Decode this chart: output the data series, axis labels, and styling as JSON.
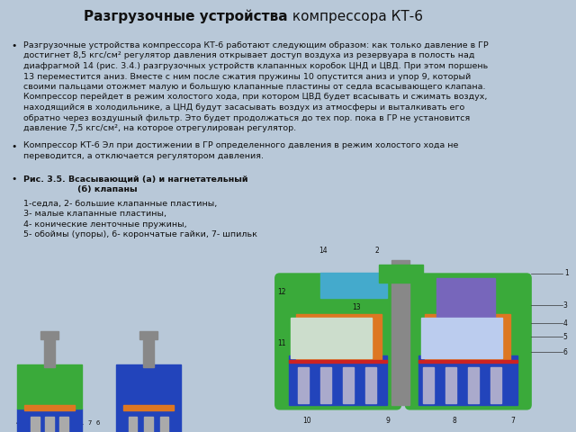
{
  "title_bold": "Разгрузочные устройства",
  "title_normal": " компрессора КТ-6",
  "title_bg": "#E8A8A0",
  "content_bg": "#B8C8D8",
  "fig_bg": "#B8C8D8",
  "text_color": "#111111",
  "fontsize_title": 11,
  "fontsize_main": 6.8,
  "bullet1_lines": [
    "Разгрузочные устройства компрессора КТ-6 работают следующим образом: как только давление в ГР",
    "достигнет 8,5 кгс/см² регулятор давления открывает доступ воздуха из резервуара в полость над",
    "диафрагмой 14 (рис. 3.4.) разгрузочных устройств клапанных коробок ЦНД и ЦВД. При этом поршень",
    "13 переместится аниз. Вместе с ним после сжатия пружины 10 опустится аниз и упор 9, который",
    "своими пальцами отожмет малую и большую клапанные пластины от седла всасывающего клапана.",
    "Компрессор перейдет в режим холостого хода, при котором ЦВД будет всасывать и сжимать воздух,",
    "находящийся в холодильнике, а ЦНД будут засасывать воздух из атмосферы и выталкивать его",
    "обратно через воздушный фильтр. Это будет продолжаться до тех пор. пока в ГР не установится",
    "давление 7,5 кгс/см², на которое отрегулирован регулятор."
  ],
  "bullet1_bold_words": [
    "КТ-6",
    "ГР",
    "8,5",
    "кгс/см²",
    "ЦНД",
    "ЦВД",
    "13",
    "10",
    "9",
    "ЦВД",
    "ЦНД",
    "ГР",
    "7,5",
    "кгс/см²"
  ],
  "bullet2_lines": [
    "Компрессор КТ-6 Эл при достижении в ГР определенного давления в режим холостого хода не",
    "переводится, а отключается регулятором давления."
  ],
  "bullet3_line1": "Рис. 3.5. Всасывающий (а) и нагнетательный",
  "bullet3_line2": "(б) клапаны",
  "bullet3_items": [
    "1-седла, 2- большие клапанные пластины,",
    "3- малые клапанные пластины,",
    "4- конические ленточные пружины,",
    "5- обоймы (упоры), 6- корончатые гайки, 7- шпильк"
  ],
  "green_color": "#3aaa3a",
  "blue_color": "#2244bb",
  "orange_color": "#dd7722",
  "purple_color": "#7766bb",
  "cyan_color": "#44aacc",
  "gray_color": "#888888",
  "teal_color": "#228888",
  "red_color": "#cc3322",
  "brown_color": "#996633"
}
